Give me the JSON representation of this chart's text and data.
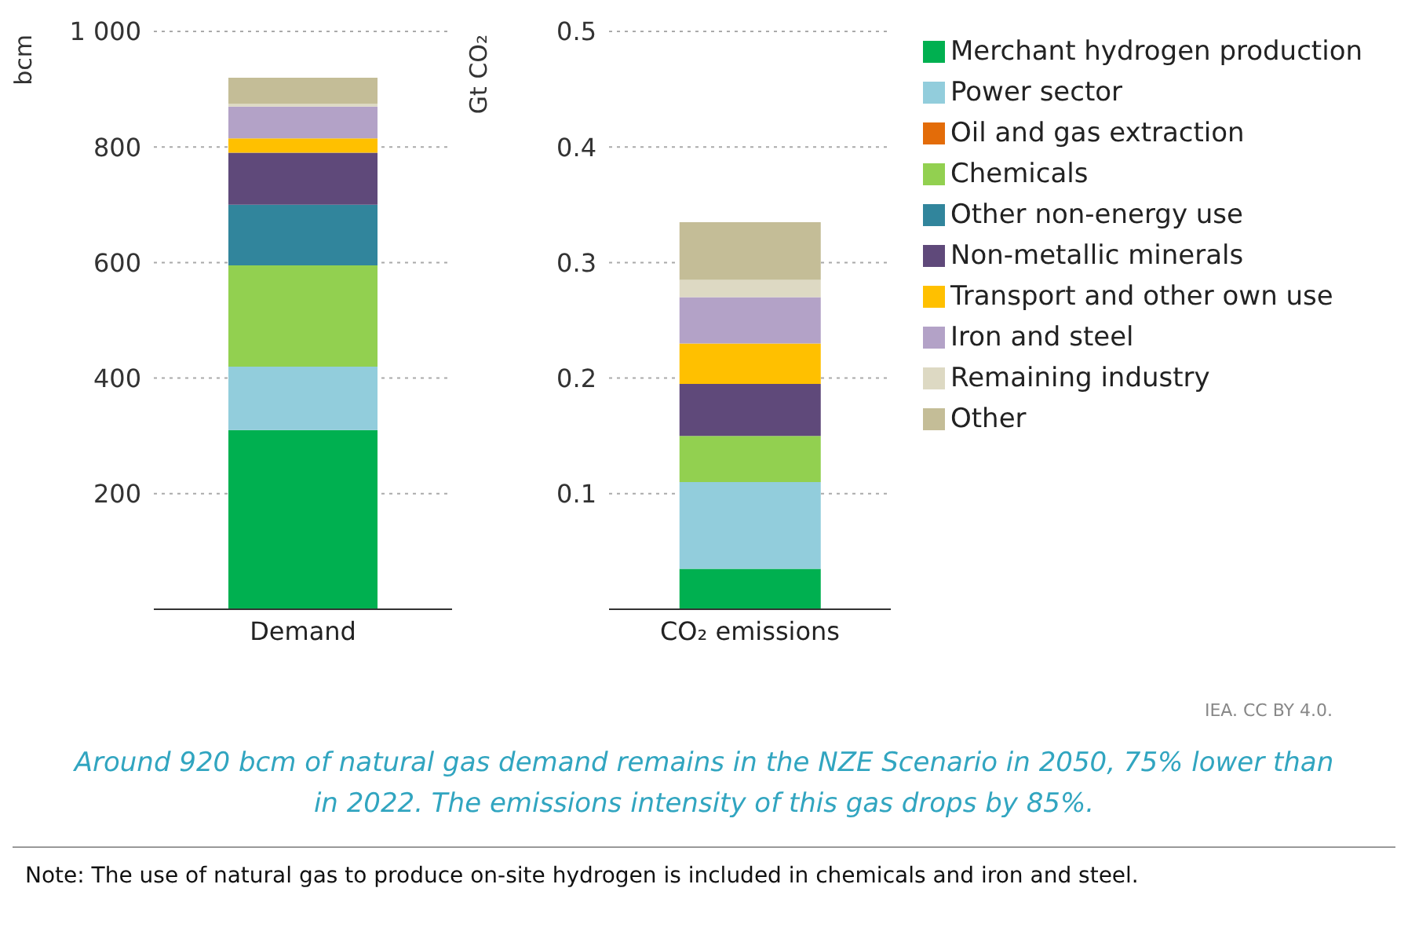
{
  "chart_data": [
    {
      "type": "bar",
      "stacked": true,
      "ylabel": "bcm",
      "categories": [
        "Demand"
      ],
      "ylim": [
        0,
        1000
      ],
      "yticks": [
        200,
        400,
        600,
        800,
        {
          "value": 1000,
          "label": "1 000"
        }
      ],
      "grid": "y",
      "legend": false,
      "series": [
        {
          "color": "#00b050",
          "values": [
            310
          ]
        },
        {
          "color": "#92cddc",
          "values": [
            110
          ]
        },
        {
          "color": "#e36c09",
          "values": [
            0
          ]
        },
        {
          "color": "#92d050",
          "values": [
            175
          ]
        },
        {
          "color": "#31859c",
          "values": [
            105
          ]
        },
        {
          "color": "#5f497a",
          "values": [
            90
          ]
        },
        {
          "color": "#ffc000",
          "values": [
            25
          ]
        },
        {
          "color": "#b3a2c7",
          "values": [
            55
          ]
        },
        {
          "color": "#ddd9c3",
          "values": [
            5
          ]
        },
        {
          "color": "#c4bd97",
          "values": [
            45
          ]
        }
      ]
    },
    {
      "type": "bar",
      "stacked": true,
      "ylabel": "Gt CO₂",
      "categories": [
        "CO₂ emissions"
      ],
      "ylim": [
        0,
        0.5
      ],
      "yticks": [
        0.1,
        0.2,
        0.3,
        0.4,
        0.5
      ],
      "grid": "y",
      "legend": "right",
      "series": [
        {
          "name": "Merchant hydrogen production",
          "color": "#00b050",
          "values": [
            0.035
          ]
        },
        {
          "name": "Power sector",
          "color": "#92cddc",
          "values": [
            0.075
          ]
        },
        {
          "name": "Oil and gas extraction",
          "color": "#e36c09",
          "values": [
            0
          ]
        },
        {
          "name": "Chemicals",
          "color": "#92d050",
          "values": [
            0.04
          ]
        },
        {
          "name": "Other non-energy use",
          "color": "#31859c",
          "values": [
            0
          ]
        },
        {
          "name": "Non-metallic minerals",
          "color": "#5f497a",
          "values": [
            0.045
          ]
        },
        {
          "name": "Transport and other own use",
          "color": "#ffc000",
          "values": [
            0.035
          ]
        },
        {
          "name": "Iron and steel",
          "color": "#b3a2c7",
          "values": [
            0.04
          ]
        },
        {
          "name": "Remaining industry",
          "color": "#ddd9c3",
          "values": [
            0.015
          ]
        },
        {
          "name": "Other",
          "color": "#c4bd97",
          "values": [
            0.05
          ]
        }
      ],
      "annotations": [
        "IEA. CC BY 4.0.",
        "Around 920 bcm of natural gas demand remains in the NZE Scenario in 2050, 75% lower than in 2022. The emissions intensity of this gas drops by 85%.",
        "Note: The use of natural gas to produce on-site hydrogen is included in chemicals and iron and steel."
      ]
    }
  ]
}
